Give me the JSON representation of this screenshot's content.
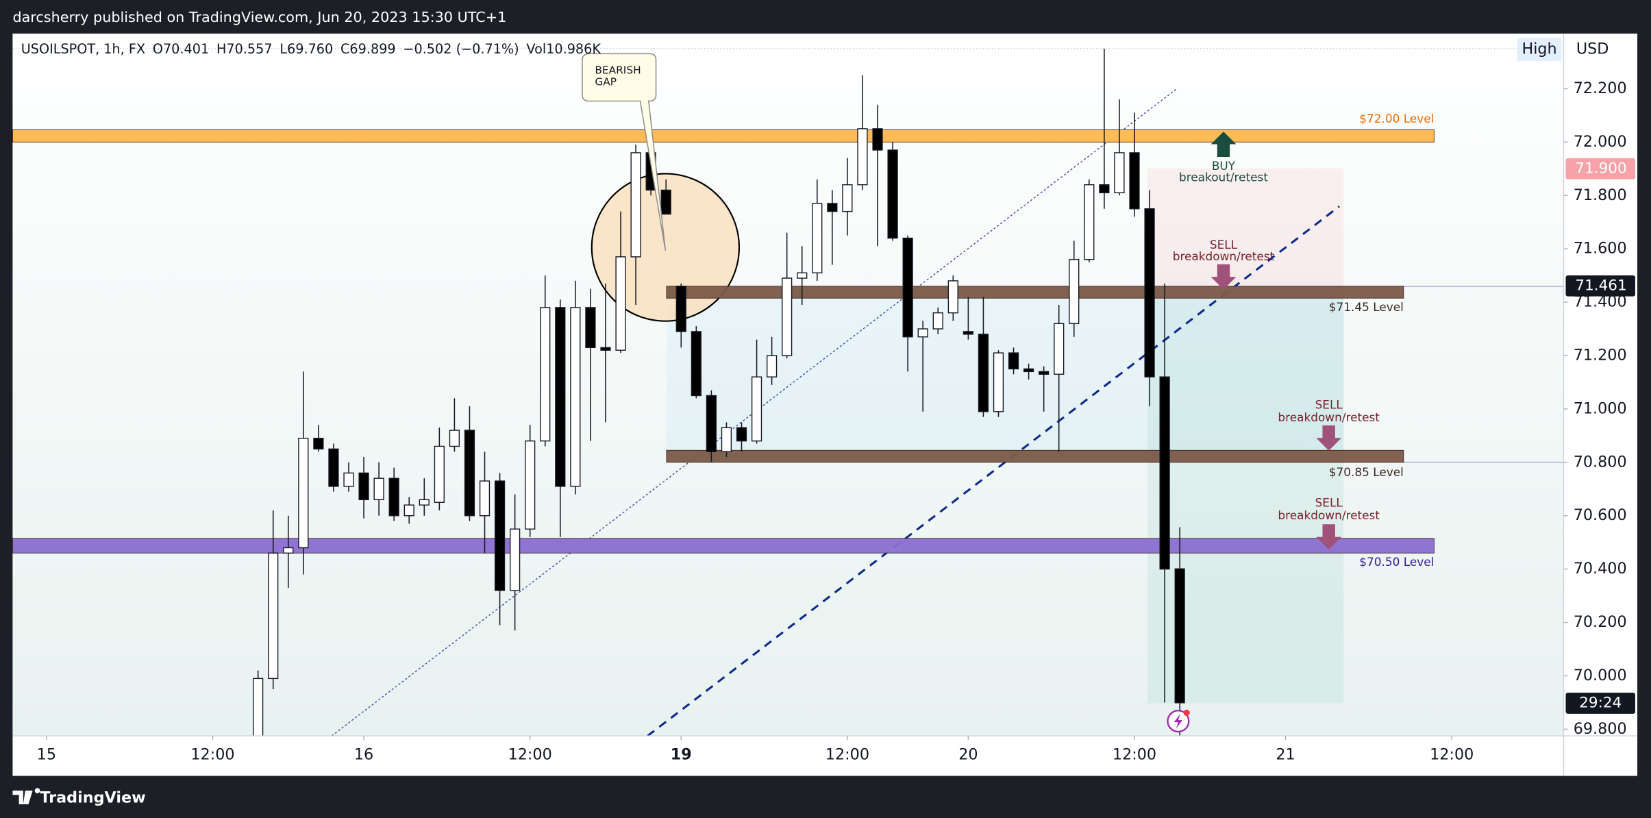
{
  "header": "darcsherry published on TradingView.com, Jun 20, 2023 15:30 UTC+1",
  "footer": "TradingView",
  "chart_data": {
    "type": "candlestick",
    "legend": [
      "USOILSPOT, 1h, FX",
      "O70.401",
      "H70.557",
      "L69.760",
      "C69.899",
      "−0.502 (−0.71%)",
      "Vol10.986K"
    ],
    "currency": "USD",
    "scale_mode": "High",
    "open": [
      69.76,
      69.99,
      70.46,
      70.48,
      70.89,
      70.85,
      70.71,
      70.76,
      70.66,
      70.74,
      70.6,
      70.64,
      70.65,
      70.86,
      70.92,
      70.6,
      70.73,
      70.32,
      70.55,
      70.88,
      71.38,
      70.71,
      71.38,
      71.23,
      71.22,
      71.57,
      71.96,
      71.82,
      71.46,
      71.29,
      71.05,
      70.84,
      70.93,
      70.88,
      71.12,
      71.2,
      71.49,
      71.51,
      71.77,
      71.74,
      71.84,
      72.05,
      71.97,
      71.64,
      71.27,
      71.3,
      71.36,
      71.29,
      71.28,
      70.99,
      71.21,
      71.15,
      71.14,
      71.13,
      71.32,
      71.56,
      71.84,
      71.81,
      71.96,
      71.75,
      71.12,
      70.401
    ],
    "high": [
      70.02,
      70.62,
      70.6,
      71.14,
      70.94,
      70.87,
      70.8,
      70.82,
      70.8,
      70.78,
      70.67,
      70.74,
      70.93,
      71.04,
      71.01,
      70.84,
      70.76,
      70.68,
      70.94,
      71.5,
      71.41,
      71.48,
      71.45,
      71.47,
      71.74,
      71.99,
      72.0,
      71.86,
      71.47,
      71.31,
      71.07,
      70.95,
      70.95,
      71.26,
      71.27,
      71.66,
      71.61,
      71.86,
      71.82,
      71.94,
      72.25,
      72.14,
      72.0,
      71.65,
      71.33,
      71.38,
      71.5,
      71.42,
      71.42,
      71.22,
      71.23,
      71.17,
      71.16,
      71.39,
      71.63,
      71.86,
      72.35,
      72.16,
      72.11,
      71.82,
      71.47,
      70.557
    ],
    "low": [
      69.7,
      69.95,
      70.33,
      70.38,
      70.84,
      70.69,
      70.69,
      70.59,
      70.6,
      70.58,
      70.57,
      70.6,
      70.62,
      70.84,
      70.58,
      70.46,
      70.19,
      70.17,
      70.52,
      70.86,
      70.52,
      70.68,
      70.88,
      70.95,
      71.21,
      71.39,
      71.8,
      71.73,
      71.23,
      71.04,
      70.8,
      70.82,
      70.84,
      70.87,
      71.09,
      71.19,
      71.39,
      71.48,
      71.54,
      71.65,
      71.82,
      71.61,
      71.63,
      71.14,
      70.99,
      71.28,
      71.33,
      71.26,
      70.97,
      70.97,
      71.13,
      71.11,
      70.99,
      70.84,
      71.27,
      71.55,
      71.75,
      71.8,
      71.72,
      71.01,
      69.9,
      69.76
    ],
    "close": [
      69.99,
      70.46,
      70.48,
      70.89,
      70.85,
      70.71,
      70.76,
      70.66,
      70.74,
      70.6,
      70.64,
      70.66,
      70.86,
      70.92,
      70.6,
      70.73,
      70.32,
      70.55,
      70.88,
      71.38,
      70.71,
      71.38,
      71.23,
      71.22,
      71.57,
      71.96,
      71.82,
      71.73,
      71.29,
      71.05,
      70.84,
      70.93,
      70.88,
      71.12,
      71.2,
      71.49,
      71.51,
      71.77,
      71.74,
      71.84,
      72.05,
      71.97,
      71.64,
      71.27,
      71.3,
      71.36,
      71.48,
      71.28,
      70.99,
      71.21,
      71.15,
      71.14,
      71.13,
      71.32,
      71.56,
      71.84,
      71.81,
      71.96,
      71.75,
      71.12,
      70.4,
      69.899
    ],
    "up_color": "#ffffff",
    "down_color": "#000000",
    "xlim": [
      -16.24,
      86.4
    ],
    "xticks": [
      {
        "value": -14,
        "label": "15"
      },
      {
        "value": -3,
        "label": "12:00"
      },
      {
        "value": 7,
        "label": "16"
      },
      {
        "value": 18,
        "label": "12:00"
      },
      {
        "value": 28,
        "label": "19"
      },
      {
        "value": 39,
        "label": "12:00"
      },
      {
        "value": 47,
        "label": "20"
      },
      {
        "value": 58,
        "label": "12:00"
      },
      {
        "value": 68,
        "label": "21"
      },
      {
        "value": 79,
        "label": "12:00"
      }
    ],
    "ylim": [
      69.775,
      72.406
    ],
    "yticks": [
      {
        "value": 69.8,
        "label": "69.800"
      },
      {
        "value": 70.0,
        "label": "70.000"
      },
      {
        "value": 70.2,
        "label": "70.200"
      },
      {
        "value": 70.4,
        "label": "70.400"
      },
      {
        "value": 70.6,
        "label": "70.600"
      },
      {
        "value": 70.8,
        "label": "70.800"
      },
      {
        "value": 71.0,
        "label": "71.000"
      },
      {
        "value": 71.2,
        "label": "71.200"
      },
      {
        "value": 71.4,
        "label": "71.400"
      },
      {
        "value": 71.6,
        "label": "71.600"
      },
      {
        "value": 71.8,
        "label": "71.800"
      },
      {
        "value": 72.0,
        "label": "72.000"
      },
      {
        "value": 72.2,
        "label": "72.200"
      }
    ],
    "grid": false,
    "levels": [
      {
        "label": "$72.00 Level",
        "from": 72.0,
        "to": 72.046,
        "color": "#ffb74d",
        "text_color": "#ef6c00"
      },
      {
        "label": "$71.45 Level",
        "from": 71.415,
        "to": 71.46,
        "color": "#7b5a48",
        "text_color": "#3e2723"
      },
      {
        "label": "$70.85 Level",
        "from": 70.8,
        "to": 70.845,
        "color": "#7b5a48",
        "text_color": "#3e2723"
      },
      {
        "label": "$70.50 Level",
        "from": 70.46,
        "to": 70.515,
        "color": "#8a6dd0",
        "text_color": "#311b92"
      }
    ],
    "price_labels": [
      {
        "value": 71.9,
        "label": "71.900",
        "color": "#f7a1a8"
      },
      {
        "value": 71.461,
        "label": "71.461",
        "color": "#131722"
      }
    ],
    "countdown": "29:24",
    "callout": [
      "BEARISH",
      "GAP"
    ],
    "signals": [
      {
        "action": "BUY",
        "text": "breakout/retest"
      },
      {
        "action": "SELL",
        "text": "breakdown/retest"
      },
      {
        "action": "SELL",
        "text": "breakdown/retest"
      },
      {
        "action": "SELL",
        "text": "breakdown/retest"
      }
    ]
  }
}
